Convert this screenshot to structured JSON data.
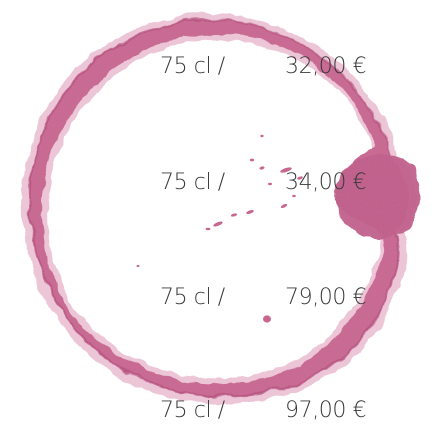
{
  "prices": [
    {
      "volume": "75 cl /",
      "price": "32,00 €"
    },
    {
      "volume": "75 cl /",
      "price": "34,00 €"
    },
    {
      "volume": "75 cl /",
      "price": "79,00 €"
    },
    {
      "volume": "75 cl /",
      "price": "97,00 €"
    }
  ],
  "colors": {
    "stain": "#c9668f",
    "stain_dark": "#b24d7a",
    "text": "#3a3a3a"
  }
}
